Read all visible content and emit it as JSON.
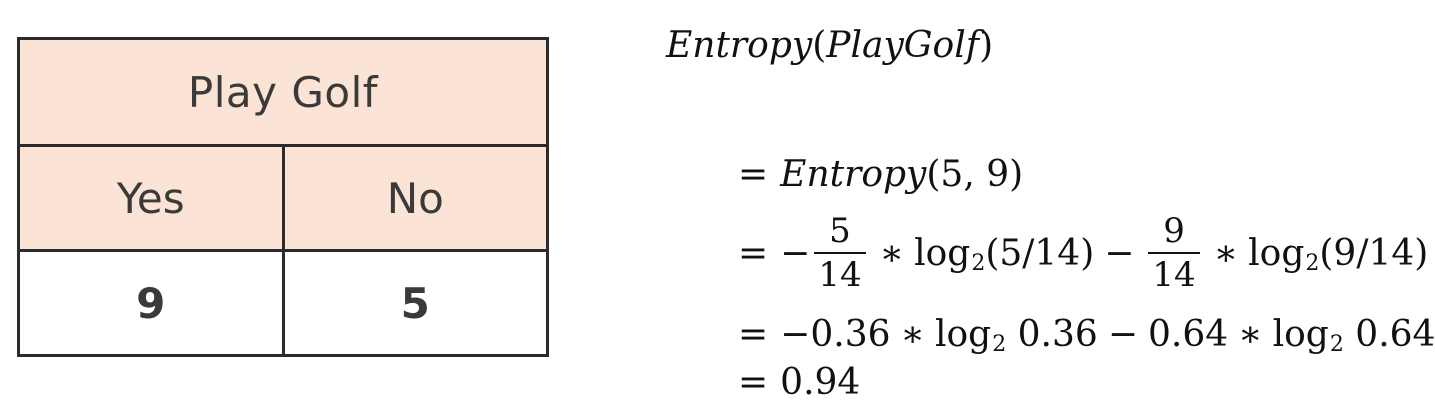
{
  "table": {
    "header": "Play Golf",
    "columns": [
      "Yes",
      "No"
    ],
    "values": [
      "9",
      "5"
    ]
  },
  "equation": {
    "title_fn": "Entropy",
    "title_arg": "PlayGolf",
    "line1_fn": "Entropy",
    "line1_args": "(5, 9)",
    "frac1_num": "5",
    "frac1_den": "14",
    "log_base": "2",
    "log1_arg": "(5/14)",
    "frac2_num": "9",
    "frac2_den": "14",
    "log2_arg": "(9/14)",
    "p1": "0.36",
    "p2": "0.64",
    "result": "0.94"
  }
}
